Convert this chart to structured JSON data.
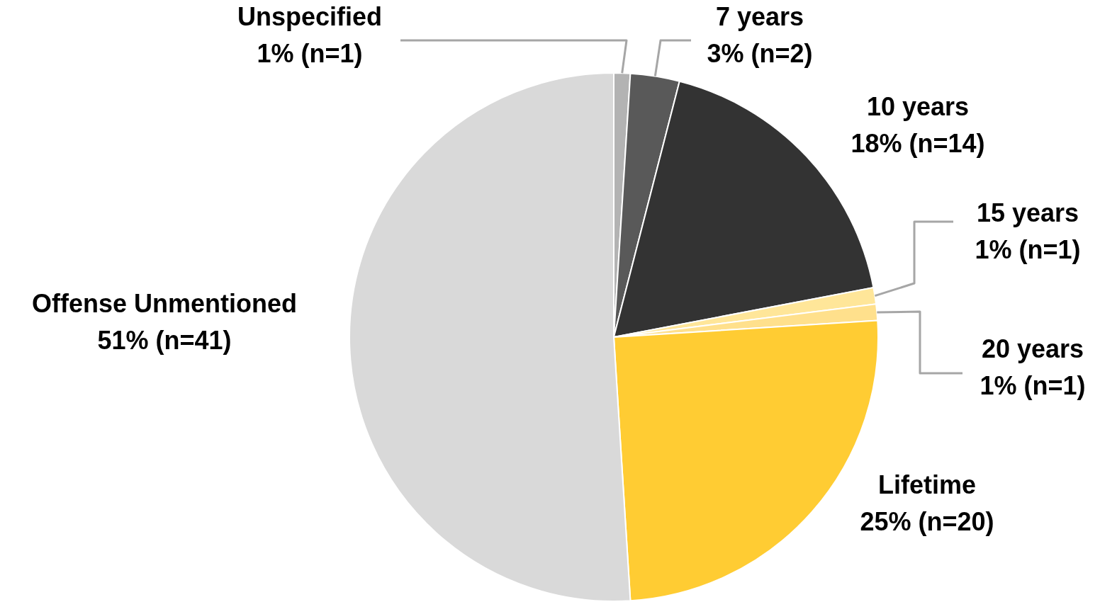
{
  "chart_data": {
    "type": "pie",
    "categories": [
      "Unspecified",
      "7 years",
      "10 years",
      "15 years",
      "20 years",
      "Lifetime",
      "Offense Unmentioned"
    ],
    "values": [
      1,
      3,
      18,
      1,
      1,
      25,
      51
    ],
    "colors": [
      "#b3b3b3",
      "#595959",
      "#333333",
      "#ffe699",
      "#ffe08c",
      "#ffcc33",
      "#d9d9d9"
    ],
    "value_labels": [
      "1% (n=1)",
      "3% (n=2)",
      "18% (n=14)",
      "1% (n=1)",
      "1% (n=1)",
      "25% (n=20)",
      "51% (n=41)"
    ]
  }
}
